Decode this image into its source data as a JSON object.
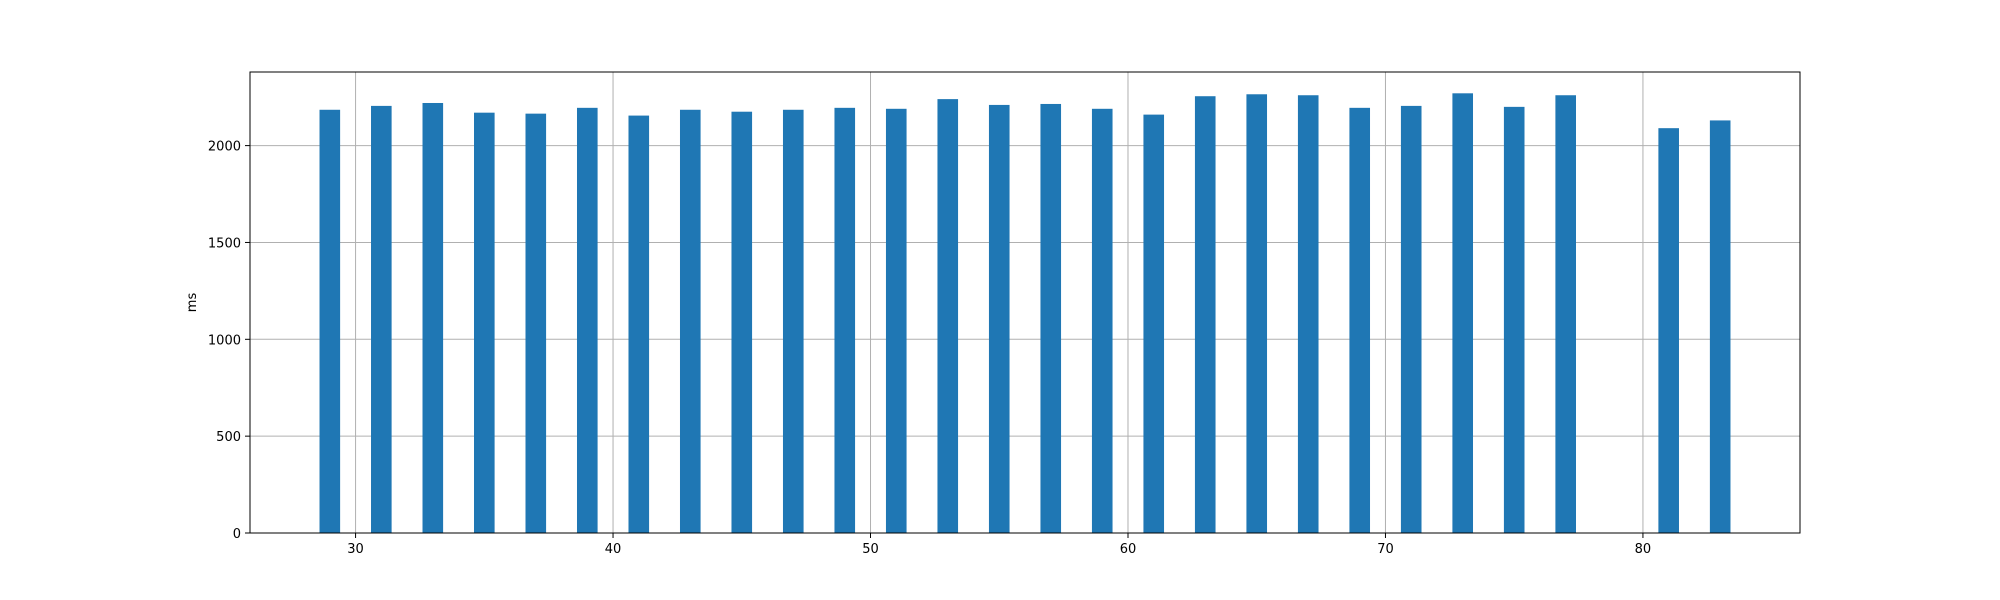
{
  "chart_data": {
    "type": "bar",
    "title": "",
    "xlabel": "",
    "ylabel": "ms",
    "x": [
      29,
      31,
      33,
      35,
      37,
      39,
      41,
      43,
      45,
      47,
      49,
      51,
      53,
      55,
      57,
      59,
      61,
      63,
      65,
      67,
      69,
      71,
      73,
      75,
      77,
      81,
      83
    ],
    "values": [
      2185,
      2205,
      2220,
      2170,
      2165,
      2195,
      2155,
      2185,
      2175,
      2185,
      2195,
      2190,
      2240,
      2210,
      2215,
      2190,
      2160,
      2255,
      2265,
      2260,
      2195,
      2205,
      2270,
      2200,
      2260,
      2090,
      2130
    ],
    "bar_width": 0.8,
    "xlim": [
      25.9,
      86.1
    ],
    "ylim": [
      0,
      2380
    ],
    "xticks": [
      30,
      40,
      50,
      60,
      70,
      80
    ],
    "yticks": [
      0,
      500,
      1000,
      1500,
      2000
    ],
    "grid": true,
    "legend": "none",
    "bar_color": "#1f77b4",
    "grid_color": "#b0b0b0"
  }
}
